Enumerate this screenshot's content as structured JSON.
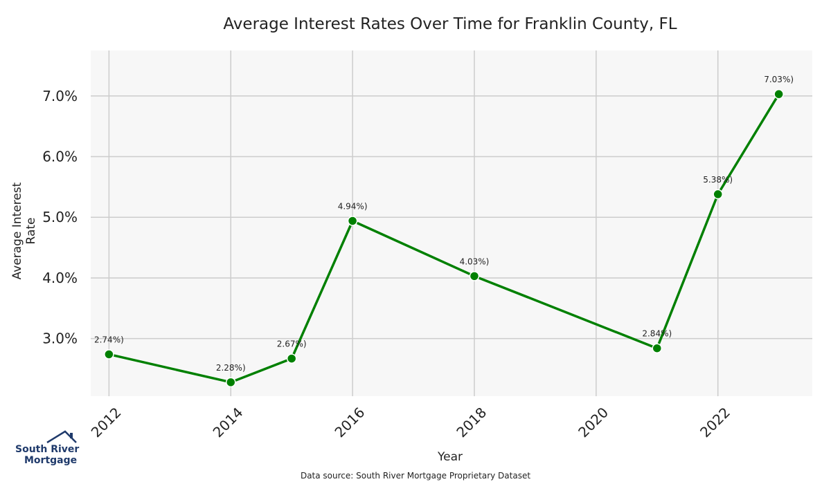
{
  "chart_data": {
    "type": "line",
    "title": "Average Interest Rates Over Time for Franklin County, FL",
    "xlabel": "Year",
    "ylabel": "Average Interest Rate",
    "x": [
      2012,
      2014,
      2015,
      2016,
      2018,
      2021,
      2022,
      2023
    ],
    "series": [
      {
        "values": [
          2.74,
          2.28,
          2.67,
          4.94,
          4.03,
          2.84,
          5.38,
          7.03
        ]
      }
    ],
    "data_labels": [
      "2.74%)",
      "2.28%)",
      "2.67%)",
      "4.94%)",
      "4.03%)",
      "2.84%)",
      "5.38%)",
      "7.03%)"
    ],
    "x_ticks": [
      "2012",
      "2014",
      "2016",
      "2018",
      "2020",
      "2022"
    ],
    "y_ticks": [
      "3.0%",
      "4.0%",
      "5.0%",
      "6.0%",
      "7.0%"
    ],
    "xlim": [
      2011.7,
      2023.55
    ],
    "ylim": [
      2.05,
      7.75
    ],
    "grid": true,
    "line_color": "#008000",
    "background_color": "#f7f7f7"
  },
  "footer": {
    "source": "Data source: South River Mortgage Proprietary Dataset",
    "logo_line1": "South River",
    "logo_line2": "Mortgage"
  }
}
